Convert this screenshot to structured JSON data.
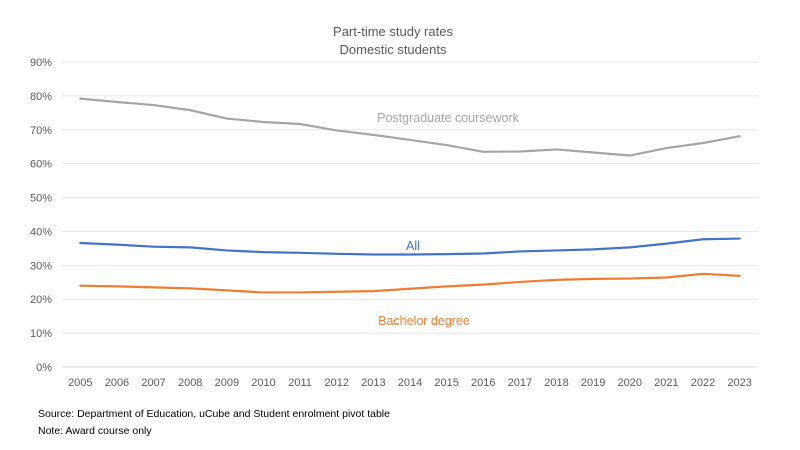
{
  "chart_data": {
    "type": "line",
    "title": "Part-time study rates",
    "subtitle": "Domestic students",
    "xlabel": "",
    "ylabel": "",
    "x": [
      "2005",
      "2006",
      "2007",
      "2008",
      "2009",
      "2010",
      "2011",
      "2012",
      "2013",
      "2014",
      "2015",
      "2016",
      "2017",
      "2018",
      "2019",
      "2020",
      "2021",
      "2022",
      "2023"
    ],
    "ylim": [
      0,
      0.9
    ],
    "yticks": [
      0,
      0.1,
      0.2,
      0.3,
      0.4,
      0.5,
      0.6,
      0.7,
      0.8,
      0.9
    ],
    "ytick_labels": [
      "0%",
      "10%",
      "20%",
      "30%",
      "40%",
      "50%",
      "60%",
      "70%",
      "80%",
      "90%"
    ],
    "grid": true,
    "legend": "none (series labelled directly on chart)",
    "series": [
      {
        "name": "Postgraduate coursework",
        "color": "#a5a5a5",
        "values": [
          0.792,
          0.782,
          0.773,
          0.758,
          0.733,
          0.723,
          0.717,
          0.698,
          0.685,
          0.67,
          0.655,
          0.635,
          0.636,
          0.642,
          0.633,
          0.624,
          0.646,
          0.661,
          0.681
        ]
      },
      {
        "name": "All",
        "color": "#4472c4",
        "values": [
          0.366,
          0.361,
          0.355,
          0.353,
          0.344,
          0.339,
          0.337,
          0.334,
          0.332,
          0.332,
          0.333,
          0.335,
          0.341,
          0.344,
          0.347,
          0.353,
          0.364,
          0.377,
          0.379
        ]
      },
      {
        "name": "Bachelor degree",
        "color": "#ed7d31",
        "values": [
          0.24,
          0.238,
          0.235,
          0.232,
          0.226,
          0.22,
          0.22,
          0.222,
          0.224,
          0.231,
          0.238,
          0.243,
          0.251,
          0.257,
          0.26,
          0.261,
          0.264,
          0.275,
          0.269
        ]
      }
    ]
  },
  "footnotes": {
    "source": "Source: Department of Education, uCube and Student enrolment pivot table",
    "note": "Note: Award course only"
  }
}
